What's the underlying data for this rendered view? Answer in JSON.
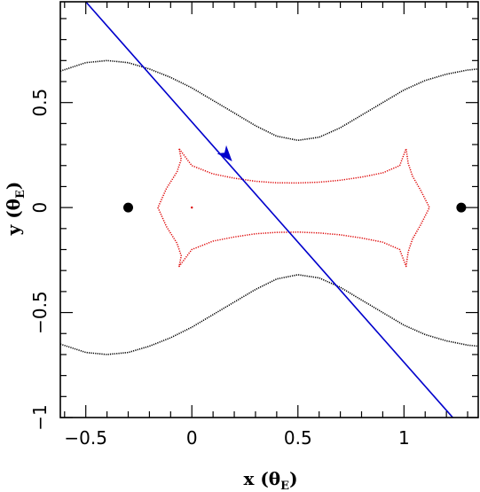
{
  "chart_data": {
    "type": "scatter",
    "title": "",
    "xlabel": "x (θ",
    "xlabel_sub": "E",
    "xlabel_close": ")",
    "ylabel": "y (θ",
    "ylabel_sub": "E",
    "ylabel_close": ")",
    "xlim": [
      -0.62,
      1.35
    ],
    "ylim": [
      -1.0,
      0.98
    ],
    "xticks": [
      -0.5,
      0,
      0.5,
      1
    ],
    "xtick_labels": [
      "−0.5",
      "0",
      "0.5",
      "1"
    ],
    "yticks": [
      -1,
      -0.5,
      0,
      0.5
    ],
    "ytick_labels": [
      "−1",
      "−0.5",
      "0",
      "0.5"
    ],
    "grid": false,
    "colors": {
      "critical_curve": "#000000",
      "caustic": "#dd0000",
      "trajectory": "#0000cc",
      "lens": "#000000",
      "frame": "#000000"
    },
    "lenses": [
      {
        "x": -0.3,
        "y": 0
      },
      {
        "x": 1.27,
        "y": 0
      }
    ],
    "critical_curve": {
      "upper": [
        [
          -0.62,
          0.65
        ],
        [
          -0.5,
          0.69
        ],
        [
          -0.4,
          0.7
        ],
        [
          -0.3,
          0.69
        ],
        [
          -0.2,
          0.66
        ],
        [
          -0.1,
          0.62
        ],
        [
          0.0,
          0.57
        ],
        [
          0.1,
          0.51
        ],
        [
          0.2,
          0.45
        ],
        [
          0.3,
          0.39
        ],
        [
          0.4,
          0.34
        ],
        [
          0.5,
          0.32
        ],
        [
          0.6,
          0.335
        ],
        [
          0.7,
          0.38
        ],
        [
          0.8,
          0.44
        ],
        [
          0.9,
          0.5
        ],
        [
          1.0,
          0.56
        ],
        [
          1.1,
          0.605
        ],
        [
          1.2,
          0.635
        ],
        [
          1.3,
          0.655
        ],
        [
          1.35,
          0.66
        ]
      ]
    },
    "caustic": {
      "points": [
        [
          -0.06,
          0.28
        ],
        [
          -0.05,
          0.23
        ],
        [
          -0.07,
          0.17
        ],
        [
          -0.12,
          0.09
        ],
        [
          -0.16,
          0.0
        ],
        [
          -0.12,
          -0.09
        ],
        [
          -0.07,
          -0.17
        ],
        [
          -0.05,
          -0.23
        ],
        [
          -0.06,
          -0.28
        ],
        [
          0.0,
          -0.2
        ],
        [
          0.1,
          -0.16
        ],
        [
          0.2,
          -0.14
        ],
        [
          0.3,
          -0.125
        ],
        [
          0.4,
          -0.118
        ],
        [
          0.5,
          -0.117
        ],
        [
          0.6,
          -0.121
        ],
        [
          0.7,
          -0.13
        ],
        [
          0.8,
          -0.145
        ],
        [
          0.9,
          -0.165
        ],
        [
          0.98,
          -0.2
        ],
        [
          1.01,
          -0.28
        ],
        [
          1.02,
          -0.21
        ],
        [
          1.04,
          -0.15
        ],
        [
          1.08,
          -0.08
        ],
        [
          1.12,
          0.0
        ],
        [
          1.08,
          0.08
        ],
        [
          1.04,
          0.15
        ],
        [
          1.02,
          0.21
        ],
        [
          1.01,
          0.28
        ],
        [
          0.98,
          0.2
        ],
        [
          0.9,
          0.165
        ],
        [
          0.8,
          0.145
        ],
        [
          0.7,
          0.13
        ],
        [
          0.6,
          0.121
        ],
        [
          0.5,
          0.117
        ],
        [
          0.4,
          0.118
        ],
        [
          0.3,
          0.125
        ],
        [
          0.2,
          0.14
        ],
        [
          0.1,
          0.16
        ],
        [
          0.0,
          0.2
        ],
        [
          -0.06,
          0.28
        ]
      ],
      "isolated_point": [
        0.0,
        0.0
      ]
    },
    "trajectory": {
      "start": [
        -0.5,
        0.98
      ],
      "end": [
        1.23,
        -1.0
      ],
      "arrow_at": [
        0.19,
        0.22
      ]
    }
  }
}
